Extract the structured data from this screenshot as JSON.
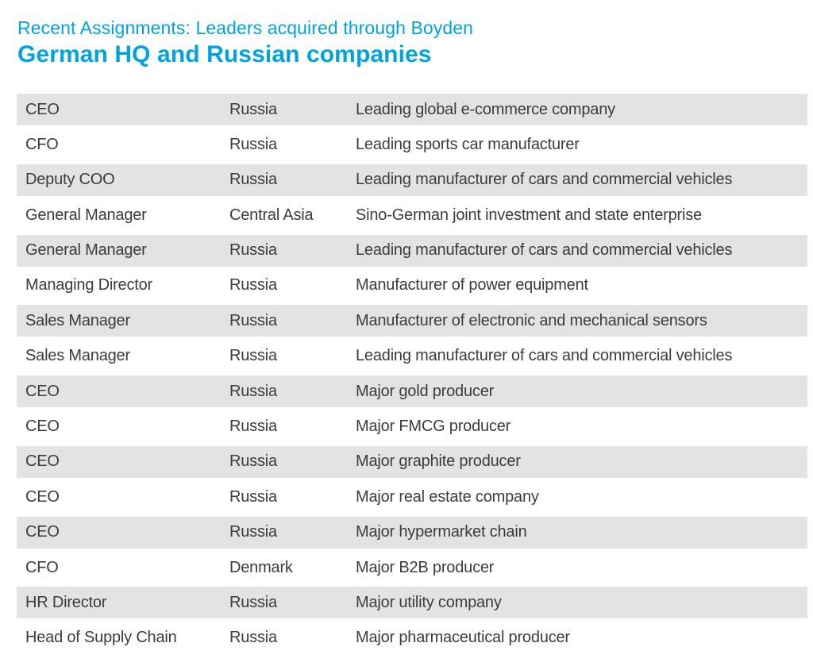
{
  "page": {
    "accent_color": "#00a2e4",
    "row_shade_color": "#e3e3e3",
    "text_color": "#3c3c3c",
    "background_color": "#ffffff"
  },
  "header": {
    "kicker": "Recent Assignments: Leaders acquired through Boyden",
    "title": "German HQ and Russian companies"
  },
  "table": {
    "rows": [
      {
        "role": "CEO",
        "region": "Russia",
        "description": "Leading global e-commerce company"
      },
      {
        "role": "CFO",
        "region": "Russia",
        "description": "Leading sports car manufacturer"
      },
      {
        "role": "Deputy COO",
        "region": "Russia",
        "description": "Leading manufacturer of cars and commercial vehicles"
      },
      {
        "role": "General Manager",
        "region": "Central Asia",
        "description": "Sino-German joint investment and state enterprise"
      },
      {
        "role": "General Manager",
        "region": "Russia",
        "description": "Leading manufacturer of cars and commercial vehicles"
      },
      {
        "role": "Managing Director",
        "region": "Russia",
        "description": "Manufacturer of power equipment"
      },
      {
        "role": "Sales Manager",
        "region": "Russia",
        "description": "Manufacturer of electronic and mechanical sensors"
      },
      {
        "role": "Sales Manager",
        "region": "Russia",
        "description": "Leading manufacturer of cars and commercial vehicles"
      },
      {
        "role": "CEO",
        "region": "Russia",
        "description": "Major gold producer"
      },
      {
        "role": "CEO",
        "region": "Russia",
        "description": "Major FMCG producer"
      },
      {
        "role": "CEO",
        "region": "Russia",
        "description": "Major graphite producer"
      },
      {
        "role": "CEO",
        "region": "Russia",
        "description": "Major real estate company"
      },
      {
        "role": "CEO",
        "region": "Russia",
        "description": "Major hypermarket chain"
      },
      {
        "role": "CFO",
        "region": "Denmark",
        "description": "Major B2B producer"
      },
      {
        "role": "HR Director",
        "region": "Russia",
        "description": "Major utility company"
      },
      {
        "role": "Head of Supply Chain",
        "region": "Russia",
        "description": "Major pharmaceutical producer"
      }
    ]
  }
}
